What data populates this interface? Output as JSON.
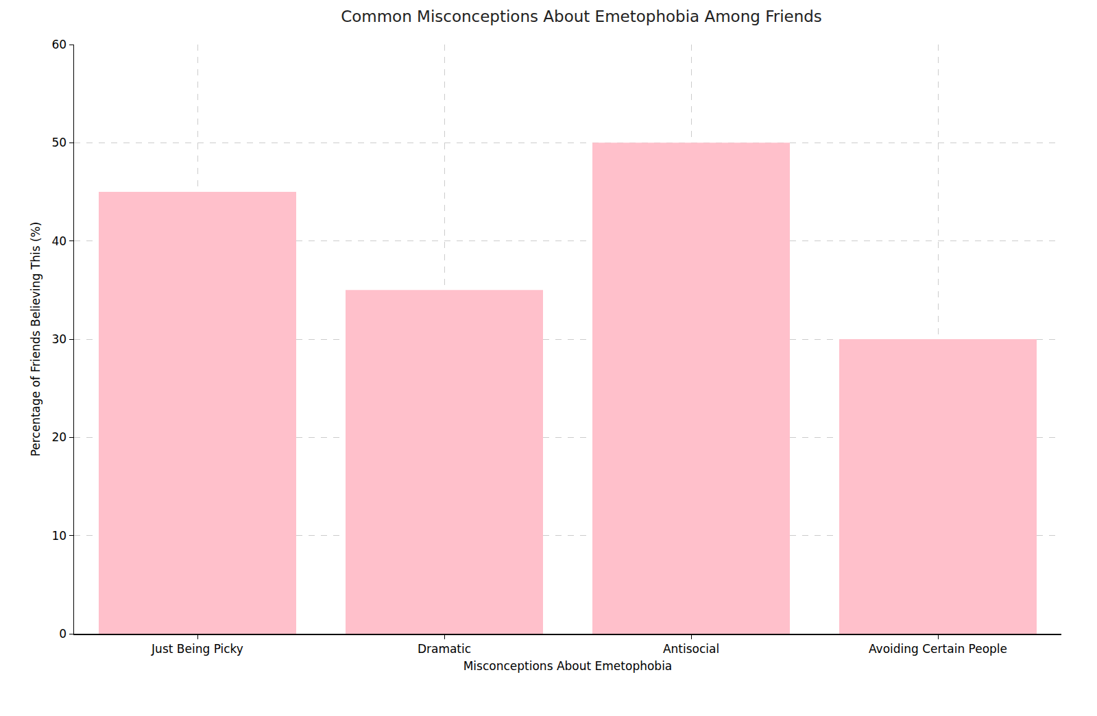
{
  "chart_data": {
    "type": "bar",
    "title": "Common Misconceptions About Emetophobia Among Friends",
    "x_label": "Misconceptions About Emetophobia",
    "y_label": "Percentage of Friends Believing This (%)",
    "categories": [
      "Just Being Picky",
      "Dramatic",
      "Antisocial",
      "Avoiding Certain People"
    ],
    "values": [
      45,
      35,
      50,
      30
    ],
    "color": "#ffc0cb",
    "ylim": [
      0,
      60
    ],
    "yticks": [
      0,
      10,
      20,
      30,
      40,
      50,
      60
    ],
    "grid": true
  }
}
